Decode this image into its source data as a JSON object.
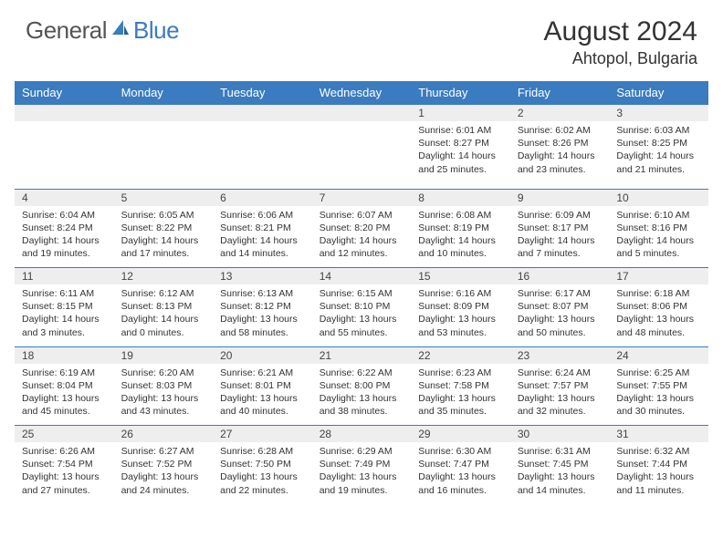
{
  "logo": {
    "text1": "General",
    "text2": "Blue"
  },
  "title": "August 2024",
  "location": "Ahtopol, Bulgaria",
  "colors": {
    "accent": "#3b7bbf",
    "daybg": "#eeeeee",
    "text": "#333333",
    "headerText": "#ffffff"
  },
  "weekdays": [
    "Sunday",
    "Monday",
    "Tuesday",
    "Wednesday",
    "Thursday",
    "Friday",
    "Saturday"
  ],
  "weeks": [
    [
      null,
      null,
      null,
      null,
      {
        "n": "1",
        "sr": "Sunrise: 6:01 AM",
        "ss": "Sunset: 8:27 PM",
        "dl": "Daylight: 14 hours and 25 minutes."
      },
      {
        "n": "2",
        "sr": "Sunrise: 6:02 AM",
        "ss": "Sunset: 8:26 PM",
        "dl": "Daylight: 14 hours and 23 minutes."
      },
      {
        "n": "3",
        "sr": "Sunrise: 6:03 AM",
        "ss": "Sunset: 8:25 PM",
        "dl": "Daylight: 14 hours and 21 minutes."
      }
    ],
    [
      {
        "n": "4",
        "sr": "Sunrise: 6:04 AM",
        "ss": "Sunset: 8:24 PM",
        "dl": "Daylight: 14 hours and 19 minutes."
      },
      {
        "n": "5",
        "sr": "Sunrise: 6:05 AM",
        "ss": "Sunset: 8:22 PM",
        "dl": "Daylight: 14 hours and 17 minutes."
      },
      {
        "n": "6",
        "sr": "Sunrise: 6:06 AM",
        "ss": "Sunset: 8:21 PM",
        "dl": "Daylight: 14 hours and 14 minutes."
      },
      {
        "n": "7",
        "sr": "Sunrise: 6:07 AM",
        "ss": "Sunset: 8:20 PM",
        "dl": "Daylight: 14 hours and 12 minutes."
      },
      {
        "n": "8",
        "sr": "Sunrise: 6:08 AM",
        "ss": "Sunset: 8:19 PM",
        "dl": "Daylight: 14 hours and 10 minutes."
      },
      {
        "n": "9",
        "sr": "Sunrise: 6:09 AM",
        "ss": "Sunset: 8:17 PM",
        "dl": "Daylight: 14 hours and 7 minutes."
      },
      {
        "n": "10",
        "sr": "Sunrise: 6:10 AM",
        "ss": "Sunset: 8:16 PM",
        "dl": "Daylight: 14 hours and 5 minutes."
      }
    ],
    [
      {
        "n": "11",
        "sr": "Sunrise: 6:11 AM",
        "ss": "Sunset: 8:15 PM",
        "dl": "Daylight: 14 hours and 3 minutes."
      },
      {
        "n": "12",
        "sr": "Sunrise: 6:12 AM",
        "ss": "Sunset: 8:13 PM",
        "dl": "Daylight: 14 hours and 0 minutes."
      },
      {
        "n": "13",
        "sr": "Sunrise: 6:13 AM",
        "ss": "Sunset: 8:12 PM",
        "dl": "Daylight: 13 hours and 58 minutes."
      },
      {
        "n": "14",
        "sr": "Sunrise: 6:15 AM",
        "ss": "Sunset: 8:10 PM",
        "dl": "Daylight: 13 hours and 55 minutes."
      },
      {
        "n": "15",
        "sr": "Sunrise: 6:16 AM",
        "ss": "Sunset: 8:09 PM",
        "dl": "Daylight: 13 hours and 53 minutes."
      },
      {
        "n": "16",
        "sr": "Sunrise: 6:17 AM",
        "ss": "Sunset: 8:07 PM",
        "dl": "Daylight: 13 hours and 50 minutes."
      },
      {
        "n": "17",
        "sr": "Sunrise: 6:18 AM",
        "ss": "Sunset: 8:06 PM",
        "dl": "Daylight: 13 hours and 48 minutes."
      }
    ],
    [
      {
        "n": "18",
        "sr": "Sunrise: 6:19 AM",
        "ss": "Sunset: 8:04 PM",
        "dl": "Daylight: 13 hours and 45 minutes."
      },
      {
        "n": "19",
        "sr": "Sunrise: 6:20 AM",
        "ss": "Sunset: 8:03 PM",
        "dl": "Daylight: 13 hours and 43 minutes."
      },
      {
        "n": "20",
        "sr": "Sunrise: 6:21 AM",
        "ss": "Sunset: 8:01 PM",
        "dl": "Daylight: 13 hours and 40 minutes."
      },
      {
        "n": "21",
        "sr": "Sunrise: 6:22 AM",
        "ss": "Sunset: 8:00 PM",
        "dl": "Daylight: 13 hours and 38 minutes."
      },
      {
        "n": "22",
        "sr": "Sunrise: 6:23 AM",
        "ss": "Sunset: 7:58 PM",
        "dl": "Daylight: 13 hours and 35 minutes."
      },
      {
        "n": "23",
        "sr": "Sunrise: 6:24 AM",
        "ss": "Sunset: 7:57 PM",
        "dl": "Daylight: 13 hours and 32 minutes."
      },
      {
        "n": "24",
        "sr": "Sunrise: 6:25 AM",
        "ss": "Sunset: 7:55 PM",
        "dl": "Daylight: 13 hours and 30 minutes."
      }
    ],
    [
      {
        "n": "25",
        "sr": "Sunrise: 6:26 AM",
        "ss": "Sunset: 7:54 PM",
        "dl": "Daylight: 13 hours and 27 minutes."
      },
      {
        "n": "26",
        "sr": "Sunrise: 6:27 AM",
        "ss": "Sunset: 7:52 PM",
        "dl": "Daylight: 13 hours and 24 minutes."
      },
      {
        "n": "27",
        "sr": "Sunrise: 6:28 AM",
        "ss": "Sunset: 7:50 PM",
        "dl": "Daylight: 13 hours and 22 minutes."
      },
      {
        "n": "28",
        "sr": "Sunrise: 6:29 AM",
        "ss": "Sunset: 7:49 PM",
        "dl": "Daylight: 13 hours and 19 minutes."
      },
      {
        "n": "29",
        "sr": "Sunrise: 6:30 AM",
        "ss": "Sunset: 7:47 PM",
        "dl": "Daylight: 13 hours and 16 minutes."
      },
      {
        "n": "30",
        "sr": "Sunrise: 6:31 AM",
        "ss": "Sunset: 7:45 PM",
        "dl": "Daylight: 13 hours and 14 minutes."
      },
      {
        "n": "31",
        "sr": "Sunrise: 6:32 AM",
        "ss": "Sunset: 7:44 PM",
        "dl": "Daylight: 13 hours and 11 minutes."
      }
    ]
  ]
}
